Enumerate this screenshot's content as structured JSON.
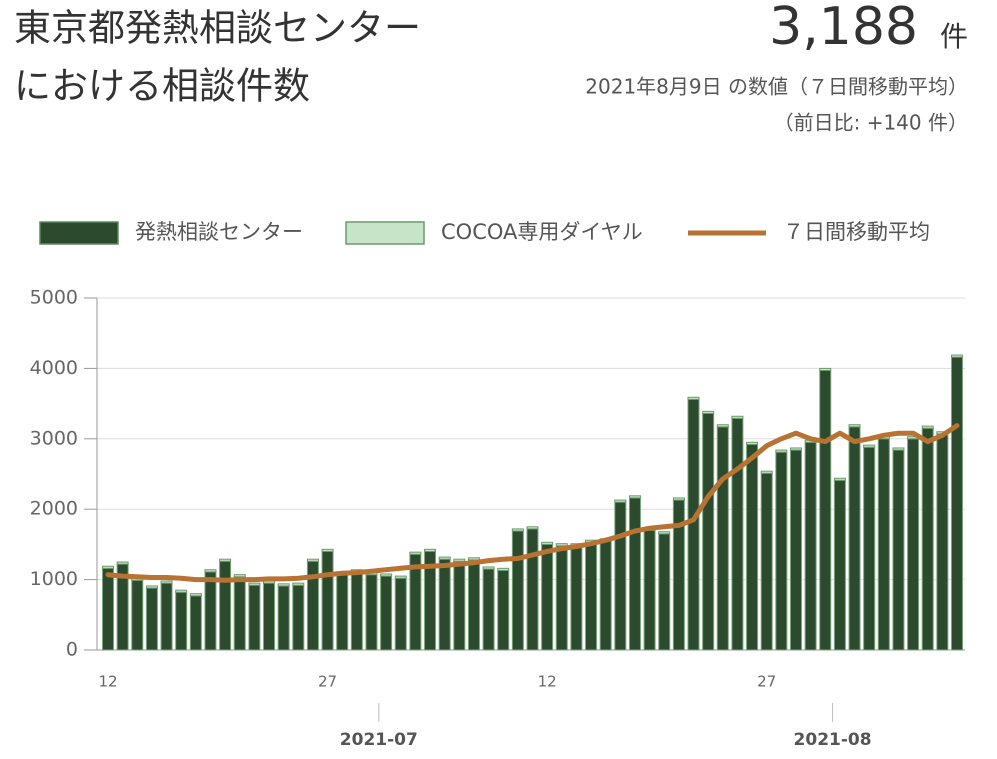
{
  "chart_data": {
    "type": "bar",
    "title": [
      "東京都発熱相談センター",
      "における相談件数"
    ],
    "headline": {
      "value": "3,188",
      "unit": "件",
      "note": "2021年8月9日 の数値（７日間移動平均）",
      "change": "（前日比: +140 件）"
    },
    "categories": [
      "12",
      null,
      null,
      null,
      null,
      null,
      null,
      null,
      null,
      null,
      null,
      null,
      null,
      null,
      null,
      "27",
      null,
      null,
      null,
      null,
      null,
      null,
      null,
      null,
      null,
      null,
      null,
      null,
      null,
      null,
      "12",
      null,
      null,
      null,
      null,
      null,
      null,
      null,
      null,
      null,
      null,
      null,
      null,
      null,
      null,
      "27",
      null,
      null,
      null,
      null,
      null,
      null,
      null,
      null,
      null,
      null,
      null,
      null,
      null
    ],
    "months": [
      {
        "label": "2021-07",
        "start": 19
      },
      {
        "label": "2021-08",
        "start": 50
      }
    ],
    "series": [
      {
        "name": "発熱相談センター",
        "color": "#2b4a2e",
        "values": [
          1160,
          1220,
          990,
          880,
          950,
          820,
          770,
          1110,
          1260,
          1040,
          920,
          950,
          910,
          920,
          1260,
          1400,
          1080,
          1110,
          1070,
          1050,
          1020,
          1360,
          1400,
          1290,
          1260,
          1280,
          1150,
          1130,
          1690,
          1720,
          1500,
          1480,
          1480,
          1530,
          1550,
          2100,
          2160,
          1700,
          1650,
          2130,
          3560,
          3360,
          3170,
          3290,
          2920,
          2510,
          2810,
          2840,
          2950,
          3970,
          2410,
          3170,
          2880,
          3000,
          2840,
          3000,
          3150,
          3070,
          4160
        ]
      },
      {
        "name": "COCOA専用ダイヤル",
        "color": "#c8e4c8",
        "values": [
          30,
          30,
          30,
          30,
          30,
          30,
          30,
          30,
          30,
          30,
          30,
          30,
          30,
          30,
          30,
          30,
          30,
          30,
          30,
          30,
          30,
          30,
          30,
          30,
          30,
          30,
          30,
          30,
          30,
          30,
          30,
          30,
          30,
          30,
          30,
          30,
          30,
          30,
          30,
          30,
          30,
          30,
          30,
          30,
          30,
          30,
          30,
          30,
          30,
          30,
          30,
          30,
          30,
          30,
          30,
          30,
          30,
          30,
          30
        ]
      },
      {
        "name": "７日間移動平均",
        "type": "line",
        "color": "#b87333",
        "values": [
          1070,
          1050,
          1040,
          1030,
          1030,
          1020,
          1000,
          1000,
          990,
          1000,
          1000,
          1010,
          1010,
          1020,
          1040,
          1070,
          1090,
          1100,
          1120,
          1140,
          1160,
          1180,
          1190,
          1200,
          1220,
          1240,
          1270,
          1290,
          1300,
          1350,
          1400,
          1440,
          1470,
          1510,
          1560,
          1620,
          1690,
          1730,
          1750,
          1770,
          1850,
          2180,
          2430,
          2570,
          2730,
          2900,
          3000,
          3080,
          3000,
          2960,
          3080,
          2960,
          3000,
          3050,
          3080,
          3080,
          2960,
          3050,
          3188
        ]
      }
    ],
    "stacked": true,
    "ylim": [
      0,
      5000
    ],
    "yticks": [
      0,
      1000,
      2000,
      3000,
      4000,
      5000
    ],
    "grid": true
  }
}
